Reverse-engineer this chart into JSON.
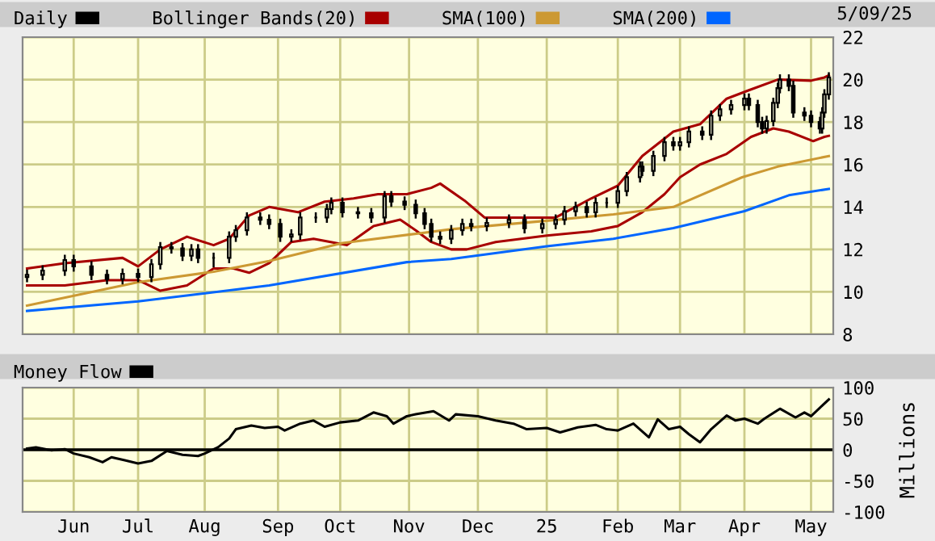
{
  "chart_data": [
    {
      "type": "candlestick",
      "legend": "top",
      "grid": true,
      "tick_labels": "y",
      "annotations": [
        "5/09/25"
      ],
      "series": [
        {
          "name": "Daily",
          "type": "candlestick",
          "color": "#000000",
          "x": [
            "2024-05-13",
            "2024-05-20",
            "2024-05-30",
            "2024-06-03",
            "2024-06-11",
            "2024-06-18",
            "2024-06-25",
            "2024-07-02",
            "2024-07-08",
            "2024-07-12",
            "2024-07-17",
            "2024-07-22",
            "2024-07-26",
            "2024-07-29",
            "2024-08-05",
            "2024-08-12",
            "2024-08-15",
            "2024-08-20",
            "2024-08-26",
            "2024-08-30",
            "2024-09-04",
            "2024-09-09",
            "2024-09-13",
            "2024-09-20",
            "2024-09-25",
            "2024-09-27",
            "2024-10-02",
            "2024-10-09",
            "2024-10-15",
            "2024-10-21",
            "2024-10-24",
            "2024-10-30",
            "2024-11-04",
            "2024-11-08",
            "2024-11-11",
            "2024-11-15",
            "2024-11-20",
            "2024-11-25",
            "2024-11-29",
            "2024-12-06",
            "2024-12-16",
            "2024-12-23",
            "2024-12-31",
            "2025-01-06",
            "2025-01-10",
            "2025-01-15",
            "2025-01-20",
            "2025-01-24",
            "2025-01-29",
            "2025-02-03",
            "2025-02-07",
            "2025-02-13",
            "2025-02-14",
            "2025-02-19",
            "2025-02-24",
            "2025-02-28",
            "2025-03-03",
            "2025-03-07",
            "2025-03-13",
            "2025-03-17",
            "2025-03-21",
            "2025-03-26",
            "2025-04-01",
            "2025-04-03",
            "2025-04-07",
            "2025-04-09",
            "2025-04-11",
            "2025-04-14",
            "2025-04-16",
            "2025-04-17",
            "2025-04-21",
            "2025-04-23",
            "2025-04-28",
            "2025-05-01",
            "2025-05-05",
            "2025-05-06",
            "2025-05-07",
            "2025-05-09"
          ],
          "ohlc": [
            [
              10.7,
              11.0,
              10.5,
              10.8
            ],
            [
              10.8,
              11.2,
              10.6,
              11.0
            ],
            [
              11.0,
              11.7,
              10.8,
              11.5
            ],
            [
              11.5,
              11.7,
              11.0,
              11.2
            ],
            [
              11.2,
              11.4,
              10.6,
              10.8
            ],
            [
              10.8,
              11.0,
              10.4,
              10.6
            ],
            [
              10.6,
              11.05,
              10.4,
              10.85
            ],
            [
              10.85,
              11.05,
              10.5,
              10.7
            ],
            [
              10.7,
              11.5,
              10.5,
              11.3
            ],
            [
              11.3,
              12.3,
              11.1,
              12.1
            ],
            [
              12.1,
              12.3,
              11.85,
              12.05
            ],
            [
              12.05,
              12.25,
              11.5,
              11.7
            ],
            [
              11.7,
              12.2,
              11.5,
              12.0
            ],
            [
              12.0,
              12.2,
              11.4,
              11.6
            ],
            [
              11.6,
              11.8,
              11.2,
              11.6
            ],
            [
              11.6,
              12.8,
              11.4,
              12.6
            ],
            [
              12.6,
              13.1,
              12.4,
              12.9
            ],
            [
              12.9,
              13.7,
              12.7,
              13.5
            ],
            [
              13.5,
              13.7,
              13.2,
              13.4
            ],
            [
              13.4,
              13.6,
              13.0,
              13.2
            ],
            [
              13.2,
              13.4,
              12.4,
              12.6
            ],
            [
              12.6,
              12.9,
              12.4,
              12.7
            ],
            [
              12.7,
              13.7,
              12.5,
              13.5
            ],
            [
              13.5,
              13.7,
              13.3,
              13.5
            ],
            [
              13.5,
              14.1,
              13.3,
              13.9
            ],
            [
              13.9,
              14.4,
              13.7,
              14.2
            ],
            [
              14.2,
              14.4,
              13.55,
              13.75
            ],
            [
              13.75,
              13.95,
              13.5,
              13.7
            ],
            [
              13.7,
              13.9,
              13.3,
              13.5
            ],
            [
              13.5,
              14.7,
              13.3,
              14.5
            ],
            [
              14.5,
              14.7,
              14.05,
              14.25
            ],
            [
              14.25,
              14.45,
              13.9,
              14.1
            ],
            [
              14.1,
              14.3,
              13.5,
              13.7
            ],
            [
              13.7,
              13.9,
              13.0,
              13.2
            ],
            [
              13.2,
              13.4,
              12.4,
              12.6
            ],
            [
              12.6,
              12.8,
              12.3,
              12.5
            ],
            [
              12.5,
              13.1,
              12.3,
              12.9
            ],
            [
              12.9,
              13.4,
              12.7,
              13.2
            ],
            [
              13.2,
              13.4,
              12.9,
              13.1
            ],
            [
              13.1,
              13.45,
              12.9,
              13.25
            ],
            [
              13.25,
              13.6,
              13.05,
              13.4
            ],
            [
              13.4,
              13.6,
              12.8,
              13.0
            ],
            [
              13.0,
              13.4,
              12.8,
              13.2
            ],
            [
              13.2,
              13.6,
              13.0,
              13.4
            ],
            [
              13.4,
              14.0,
              13.2,
              13.8
            ],
            [
              13.8,
              14.2,
              13.6,
              14.0
            ],
            [
              14.0,
              14.2,
              13.55,
              13.75
            ],
            [
              13.75,
              14.4,
              13.55,
              14.2
            ],
            [
              14.2,
              14.4,
              14.0,
              14.2
            ],
            [
              14.2,
              14.95,
              14.0,
              14.75
            ],
            [
              14.75,
              15.6,
              14.55,
              15.4
            ],
            [
              15.4,
              16.1,
              15.2,
              15.9
            ],
            [
              15.9,
              16.1,
              15.5,
              15.7
            ],
            [
              15.7,
              16.6,
              15.5,
              16.4
            ],
            [
              16.4,
              17.25,
              16.2,
              17.05
            ],
            [
              17.05,
              17.25,
              16.7,
              16.9
            ],
            [
              16.9,
              17.25,
              16.7,
              17.05
            ],
            [
              17.05,
              17.75,
              16.85,
              17.55
            ],
            [
              17.55,
              17.75,
              17.2,
              17.4
            ],
            [
              17.4,
              18.5,
              17.2,
              18.3
            ],
            [
              18.3,
              18.8,
              18.1,
              18.6
            ],
            [
              18.6,
              19.0,
              18.4,
              18.8
            ],
            [
              18.8,
              19.3,
              18.6,
              19.1
            ],
            [
              19.1,
              19.3,
              18.6,
              18.8
            ],
            [
              18.8,
              19.0,
              17.8,
              18.0
            ],
            [
              18.0,
              18.2,
              17.5,
              17.7
            ],
            [
              17.7,
              18.25,
              17.5,
              18.05
            ],
            [
              18.05,
              19.1,
              17.85,
              18.9
            ],
            [
              18.9,
              19.8,
              18.7,
              19.6
            ],
            [
              19.6,
              20.2,
              19.4,
              20.0
            ],
            [
              20.0,
              20.2,
              19.5,
              19.7
            ],
            [
              19.7,
              19.9,
              18.25,
              18.45
            ],
            [
              18.45,
              18.65,
              18.1,
              18.3
            ],
            [
              18.3,
              18.5,
              17.8,
              18.0
            ],
            [
              18.0,
              18.2,
              17.5,
              17.7
            ],
            [
              17.7,
              18.65,
              17.5,
              18.45
            ],
            [
              18.45,
              19.5,
              18.25,
              19.3
            ],
            [
              19.3,
              20.3,
              19.1,
              20.1
            ]
          ]
        },
        {
          "name": "Bollinger Bands(20)",
          "type": "line",
          "color": "#a80000",
          "x": [
            "2024-05-13",
            "2024-05-30",
            "2024-06-25",
            "2024-07-02",
            "2024-07-12",
            "2024-07-24",
            "2024-08-05",
            "2024-08-12",
            "2024-08-21",
            "2024-08-30",
            "2024-09-12",
            "2024-09-24",
            "2024-10-07",
            "2024-10-18",
            "2024-10-31",
            "2024-11-11",
            "2024-11-15",
            "2024-11-26",
            "2024-12-05",
            "2025-01-06",
            "2025-01-22",
            "2025-02-03",
            "2025-02-14",
            "2025-02-28",
            "2025-03-12",
            "2025-03-24",
            "2025-04-03",
            "2025-04-16",
            "2025-05-01",
            "2025-05-07",
            "2025-05-09"
          ],
          "values": [
            11.1,
            11.35,
            11.6,
            11.2,
            12.0,
            12.6,
            12.2,
            12.5,
            13.6,
            14.0,
            13.75,
            14.25,
            14.4,
            14.6,
            14.6,
            14.9,
            15.1,
            14.3,
            13.5,
            13.5,
            14.4,
            15.0,
            16.4,
            17.55,
            17.9,
            19.1,
            19.5,
            20.0,
            19.95,
            20.1,
            20.2
          ]
        },
        {
          "type": "line",
          "color": "#a80000",
          "x": [
            "2024-05-13",
            "2024-05-30",
            "2024-06-18",
            "2024-07-02",
            "2024-07-12",
            "2024-07-24",
            "2024-08-05",
            "2024-08-14",
            "2024-08-21",
            "2024-08-30",
            "2024-09-09",
            "2024-09-19",
            "2024-10-04",
            "2024-10-16",
            "2024-10-28",
            "2024-11-04",
            "2024-11-11",
            "2024-11-20",
            "2024-11-27",
            "2024-12-10",
            "2025-01-02",
            "2025-01-22",
            "2025-02-03",
            "2025-02-14",
            "2025-02-24",
            "2025-03-03",
            "2025-03-12",
            "2025-03-24",
            "2025-04-04",
            "2025-04-14",
            "2025-04-21",
            "2025-05-02",
            "2025-05-07",
            "2025-05-09"
          ],
          "values": [
            10.3,
            10.3,
            10.55,
            10.55,
            10.05,
            10.3,
            11.1,
            11.1,
            10.9,
            11.35,
            12.35,
            12.5,
            12.2,
            13.1,
            13.4,
            12.9,
            12.35,
            12.0,
            12.0,
            12.35,
            12.65,
            12.85,
            13.1,
            13.75,
            14.6,
            15.4,
            16.0,
            16.5,
            17.3,
            17.7,
            17.55,
            17.1,
            17.3,
            17.35
          ]
        },
        {
          "name": "SMA(100)",
          "type": "line",
          "color": "#cc9933",
          "x": [
            "2024-05-13",
            "2024-07-02",
            "2024-08-05",
            "2024-08-30",
            "2024-10-02",
            "2024-11-05",
            "2024-11-20",
            "2025-01-02",
            "2025-02-01",
            "2025-02-28",
            "2025-03-31",
            "2025-04-16",
            "2025-05-09"
          ],
          "values": [
            9.35,
            10.45,
            10.95,
            11.45,
            12.3,
            12.75,
            12.95,
            13.35,
            13.65,
            14.0,
            15.4,
            15.9,
            16.4
          ]
        },
        {
          "name": "SMA(200)",
          "type": "line",
          "color": "#0066ff",
          "x": [
            "2024-05-13",
            "2024-07-02",
            "2024-08-30",
            "2024-10-31",
            "2024-11-20",
            "2025-01-02",
            "2025-02-01",
            "2025-02-28",
            "2025-04-01",
            "2025-04-21",
            "2025-05-09"
          ],
          "values": [
            9.1,
            9.55,
            10.3,
            11.4,
            11.55,
            12.15,
            12.5,
            13.0,
            13.8,
            14.55,
            14.85
          ]
        }
      ],
      "xlim": [
        "2024-05-11",
        "2025-05-11"
      ],
      "xticks": [
        {
          "value": "2024-06-03",
          "label": null
        },
        {
          "value": "2024-07-02",
          "label": null
        },
        {
          "value": "2024-08-01",
          "label": null
        },
        {
          "value": "2024-09-03",
          "label": null
        },
        {
          "value": "2024-10-01",
          "label": null
        },
        {
          "value": "2024-11-01",
          "label": null
        },
        {
          "value": "2024-12-02",
          "label": null
        },
        {
          "value": "2025-01-02",
          "label": null
        },
        {
          "value": "2025-02-03",
          "label": null
        },
        {
          "value": "2025-03-03",
          "label": null
        },
        {
          "value": "2025-04-01",
          "label": null
        },
        {
          "value": "2025-05-01",
          "label": null
        }
      ],
      "ylim": [
        8,
        22
      ],
      "yticks": [
        8,
        10,
        12,
        14,
        16,
        18,
        20,
        22
      ]
    },
    {
      "type": "line",
      "legend": "top",
      "grid": true,
      "ylabel": "Millions",
      "series": [
        {
          "name": "Money Flow",
          "color": "#000000",
          "x": [
            "2024-05-13",
            "2024-05-17",
            "2024-05-24",
            "2024-05-30",
            "2024-06-03",
            "2024-06-10",
            "2024-06-16",
            "2024-06-20",
            "2024-06-26",
            "2024-07-02",
            "2024-07-08",
            "2024-07-15",
            "2024-07-22",
            "2024-07-29",
            "2024-08-01",
            "2024-08-07",
            "2024-08-12",
            "2024-08-15",
            "2024-08-22",
            "2024-08-28",
            "2024-09-03",
            "2024-09-06",
            "2024-09-13",
            "2024-09-19",
            "2024-09-24",
            "2024-10-01",
            "2024-10-09",
            "2024-10-16",
            "2024-10-22",
            "2024-10-25",
            "2024-10-31",
            "2024-11-04",
            "2024-11-12",
            "2024-11-19",
            "2024-11-22",
            "2024-12-02",
            "2024-12-10",
            "2024-12-18",
            "2024-12-24",
            "2025-01-02",
            "2025-01-08",
            "2025-01-16",
            "2025-01-24",
            "2025-01-29",
            "2025-02-03",
            "2025-02-10",
            "2025-02-17",
            "2025-02-21",
            "2025-02-26",
            "2025-03-03",
            "2025-03-07",
            "2025-03-12",
            "2025-03-17",
            "2025-03-24",
            "2025-03-28",
            "2025-04-01",
            "2025-04-07",
            "2025-04-10",
            "2025-04-17",
            "2025-04-24",
            "2025-04-28",
            "2025-05-01",
            "2025-05-06",
            "2025-05-09"
          ],
          "values": [
            2,
            4,
            -1,
            1,
            -6,
            -12,
            -20,
            -12,
            -17,
            -22,
            -18,
            -2,
            -8,
            -10,
            -6,
            4,
            18,
            33,
            39,
            35,
            37,
            31,
            42,
            47,
            37,
            44,
            47,
            60,
            54,
            42,
            54,
            57,
            62,
            47,
            57,
            54,
            47,
            42,
            33,
            35,
            28,
            36,
            40,
            33,
            31,
            42,
            20,
            49,
            33,
            37,
            25,
            12,
            33,
            55,
            47,
            50,
            42,
            50,
            66,
            52,
            60,
            54,
            71,
            81
          ]
        }
      ],
      "ref_lines": [
        {
          "axis": "y",
          "value": 0,
          "color": "#000000"
        }
      ],
      "xlim": [
        "2024-05-11",
        "2025-05-11"
      ],
      "xticks": [
        {
          "value": "2024-06-03",
          "label": "Jun"
        },
        {
          "value": "2024-07-02",
          "label": "Jul"
        },
        {
          "value": "2024-08-01",
          "label": "Aug"
        },
        {
          "value": "2024-09-03",
          "label": "Sep"
        },
        {
          "value": "2024-10-01",
          "label": "Oct"
        },
        {
          "value": "2024-11-01",
          "label": "Nov"
        },
        {
          "value": "2024-12-02",
          "label": "Dec"
        },
        {
          "value": "2025-01-02",
          "label": "25"
        },
        {
          "value": "2025-02-03",
          "label": "Feb"
        },
        {
          "value": "2025-03-03",
          "label": "Mar"
        },
        {
          "value": "2025-04-01",
          "label": "Apr"
        },
        {
          "value": "2025-05-01",
          "label": "May"
        }
      ],
      "ylim": [
        -100,
        100
      ],
      "yticks": [
        -100,
        -50,
        0,
        50,
        100
      ]
    }
  ]
}
